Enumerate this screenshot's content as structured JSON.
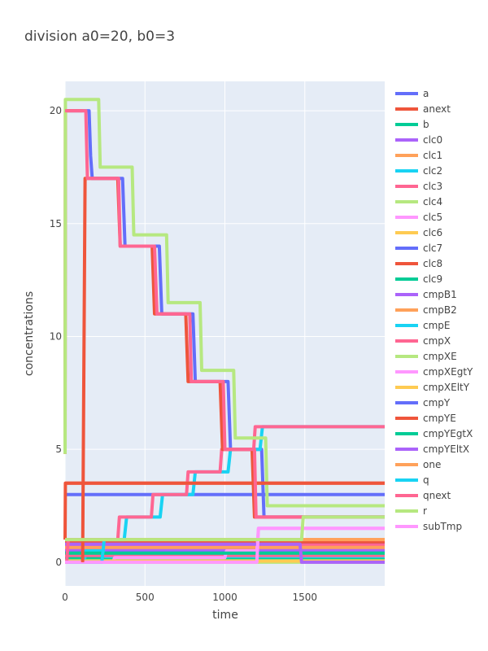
{
  "chart_data": {
    "type": "line",
    "title": "division a0=20, b0=3",
    "xlabel": "time",
    "ylabel": "concentrations",
    "xlim": [
      0,
      2000
    ],
    "ylim": [
      -1.05,
      21.3
    ],
    "x_ticks": [
      0,
      500,
      1000,
      1500
    ],
    "x_tick_labels": [
      "0",
      "500",
      "1000",
      "1500"
    ],
    "y_ticks": [
      0,
      5,
      10,
      15,
      20
    ],
    "y_tick_labels": [
      "0",
      "5",
      "10",
      "15",
      "20"
    ],
    "grid": true,
    "legend_position": "right",
    "series": [
      {
        "name": "a",
        "color": "#636efa",
        "points": [
          [
            0,
            20
          ],
          [
            150,
            20
          ],
          [
            160,
            18
          ],
          [
            170,
            17
          ],
          [
            360,
            17
          ],
          [
            375,
            14
          ],
          [
            590,
            14
          ],
          [
            605,
            11
          ],
          [
            800,
            11
          ],
          [
            815,
            8
          ],
          [
            1020,
            8
          ],
          [
            1035,
            5
          ],
          [
            1230,
            5
          ],
          [
            1245,
            2
          ],
          [
            2000,
            2
          ]
        ]
      },
      {
        "name": "anext",
        "color": "#ef553b",
        "points": [
          [
            0,
            4.8
          ],
          [
            2,
            20
          ],
          [
            110,
            20
          ]
        ]
      },
      {
        "name": "b",
        "color": "#00cc96",
        "points": [
          [
            0,
            0.6
          ],
          [
            2000,
            0.6
          ]
        ]
      },
      {
        "name": "clc0",
        "color": "#ab63fa",
        "points": [
          [
            0,
            0.85
          ],
          [
            2000,
            0.85
          ]
        ]
      },
      {
        "name": "clc1",
        "color": "#ffa15a",
        "points": [
          [
            0,
            1
          ],
          [
            2000,
            1
          ]
        ]
      },
      {
        "name": "clc2",
        "color": "#19d3f3",
        "points": [
          [
            0,
            0.1
          ],
          [
            2000,
            0.1
          ]
        ]
      },
      {
        "name": "clc3",
        "color": "#ff6692",
        "points": [
          [
            0,
            0.75
          ],
          [
            2000,
            0.75
          ]
        ]
      },
      {
        "name": "clc4",
        "color": "#b6e880",
        "points": [
          [
            0,
            0.15
          ],
          [
            2000,
            0.15
          ]
        ]
      },
      {
        "name": "clc5",
        "color": "#ff97ff",
        "points": [
          [
            0,
            0.35
          ],
          [
            2000,
            0.35
          ]
        ]
      },
      {
        "name": "clc6",
        "color": "#fecb52",
        "points": [
          [
            0,
            0.95
          ],
          [
            2000,
            0.95
          ]
        ]
      },
      {
        "name": "clc7",
        "color": "#636efa",
        "points": [
          [
            0,
            0.45
          ],
          [
            2000,
            0.45
          ]
        ]
      },
      {
        "name": "clc8",
        "color": "#ef553b",
        "points": [
          [
            0,
            0.9
          ],
          [
            2000,
            0.9
          ]
        ]
      },
      {
        "name": "clc9",
        "color": "#00cc96",
        "points": [
          [
            0,
            0.2
          ],
          [
            2000,
            0.2
          ]
        ]
      },
      {
        "name": "cmpB1",
        "color": "#ab63fa",
        "points": [
          [
            0,
            0.55
          ],
          [
            2000,
            0.55
          ]
        ]
      },
      {
        "name": "cmpB2",
        "color": "#ffa15a",
        "points": [
          [
            0,
            0.65
          ],
          [
            2000,
            0.65
          ]
        ]
      },
      {
        "name": "cmpE",
        "color": "#19d3f3",
        "points": [
          [
            0,
            0
          ],
          [
            120,
            0
          ],
          [
            130,
            0.5
          ],
          [
            240,
            0.5
          ],
          [
            250,
            0.25
          ],
          [
            2000,
            0.25
          ]
        ]
      },
      {
        "name": "cmpX",
        "color": "#ff6692",
        "points": [
          [
            0,
            0.3
          ],
          [
            2000,
            0.3
          ]
        ]
      },
      {
        "name": "cmpXE",
        "color": "#b6e880",
        "points": [
          [
            0,
            0
          ],
          [
            2000,
            0
          ]
        ]
      },
      {
        "name": "cmpXEgtY",
        "color": "#ff97ff",
        "points": [
          [
            0,
            0
          ],
          [
            300,
            0
          ],
          [
            310,
            0.2
          ],
          [
            1000,
            0.2
          ],
          [
            1010,
            0.5
          ],
          [
            1200,
            0.5
          ],
          [
            1210,
            1.5
          ],
          [
            2000,
            1.5
          ]
        ]
      },
      {
        "name": "cmpXEltY",
        "color": "#fecb52",
        "points": [
          [
            0,
            0.05
          ],
          [
            2000,
            0.05
          ]
        ]
      },
      {
        "name": "cmpY",
        "color": "#636efa",
        "points": [
          [
            0,
            3
          ],
          [
            2000,
            3
          ]
        ]
      },
      {
        "name": "cmpYE",
        "color": "#ef553b",
        "points": [
          [
            0,
            3.5
          ],
          [
            2000,
            3.5
          ]
        ]
      },
      {
        "name": "cmpYEgtX",
        "color": "#00cc96",
        "points": [
          [
            0,
            0.4
          ],
          [
            2000,
            0.4
          ]
        ]
      },
      {
        "name": "cmpYEltX",
        "color": "#ab63fa",
        "points": [
          [
            0,
            0.8
          ],
          [
            1470,
            0.8
          ],
          [
            1480,
            0
          ],
          [
            2000,
            0
          ]
        ]
      },
      {
        "name": "one",
        "color": "#ffa15a",
        "points": [
          [
            0,
            1
          ],
          [
            2000,
            1
          ]
        ]
      },
      {
        "name": "q",
        "color": "#19d3f3",
        "points": [
          [
            0,
            0
          ],
          [
            230,
            0
          ],
          [
            245,
            1
          ],
          [
            370,
            1
          ],
          [
            385,
            2
          ],
          [
            595,
            2
          ],
          [
            610,
            3
          ],
          [
            800,
            3
          ],
          [
            815,
            4
          ],
          [
            1020,
            4
          ],
          [
            1035,
            5
          ],
          [
            1220,
            5
          ],
          [
            1235,
            6
          ],
          [
            2000,
            6
          ]
        ]
      },
      {
        "name": "qnext",
        "color": "#ff6692",
        "points": [
          [
            0,
            0
          ],
          [
            10,
            0
          ],
          [
            20,
            1
          ],
          [
            330,
            1
          ],
          [
            340,
            2
          ],
          [
            540,
            2
          ],
          [
            550,
            3
          ],
          [
            760,
            3
          ],
          [
            770,
            4
          ],
          [
            970,
            4
          ],
          [
            980,
            5
          ],
          [
            1180,
            5
          ],
          [
            1190,
            6
          ],
          [
            2000,
            6
          ]
        ]
      },
      {
        "name": "r",
        "color": "#b6e880",
        "points": [
          [
            0,
            4.8
          ],
          [
            2,
            20.5
          ],
          [
            210,
            20.5
          ],
          [
            220,
            17.5
          ],
          [
            420,
            17.5
          ],
          [
            430,
            14.5
          ],
          [
            635,
            14.5
          ],
          [
            645,
            11.5
          ],
          [
            845,
            11.5
          ],
          [
            855,
            8.5
          ],
          [
            1055,
            8.5
          ],
          [
            1065,
            5.5
          ],
          [
            1255,
            5.5
          ],
          [
            1265,
            2.5
          ],
          [
            2000,
            2.5
          ]
        ]
      },
      {
        "name": "subTmp",
        "color": "#ff97ff",
        "points": [
          [
            0,
            0
          ],
          [
            1200,
            0
          ],
          [
            1210,
            1.5
          ],
          [
            2000,
            1.5
          ]
        ]
      }
    ],
    "extra_marks": [
      {
        "legend_ref": "anext",
        "color": "#ef553b",
        "points": [
          [
            0,
            1
          ],
          [
            2,
            3.5
          ],
          [
            2000,
            3.5
          ]
        ]
      },
      {
        "legend_ref": "anext",
        "color": "#ef553b",
        "points": [
          [
            110,
            0
          ],
          [
            125,
            17
          ],
          [
            330,
            17
          ],
          [
            345,
            14
          ],
          [
            545,
            14
          ],
          [
            560,
            11
          ],
          [
            755,
            11
          ],
          [
            770,
            8
          ],
          [
            970,
            8
          ],
          [
            985,
            5
          ],
          [
            1170,
            5
          ],
          [
            1185,
            2
          ],
          [
            2000,
            2
          ]
        ]
      },
      {
        "legend_ref": "clc3",
        "color": "#ff6692",
        "points": [
          [
            0,
            20
          ],
          [
            130,
            20
          ],
          [
            140,
            17
          ],
          [
            335,
            17
          ],
          [
            345,
            14
          ],
          [
            560,
            14
          ],
          [
            575,
            11
          ],
          [
            780,
            11
          ],
          [
            790,
            8
          ],
          [
            990,
            8
          ],
          [
            1000,
            5
          ],
          [
            1185,
            5
          ],
          [
            1195,
            2
          ],
          [
            2000,
            2
          ]
        ]
      },
      {
        "legend_ref": "clc4",
        "color": "#b6e880",
        "points": [
          [
            0,
            1
          ],
          [
            1480,
            1
          ],
          [
            1490,
            2
          ],
          [
            2000,
            2
          ]
        ]
      }
    ]
  }
}
